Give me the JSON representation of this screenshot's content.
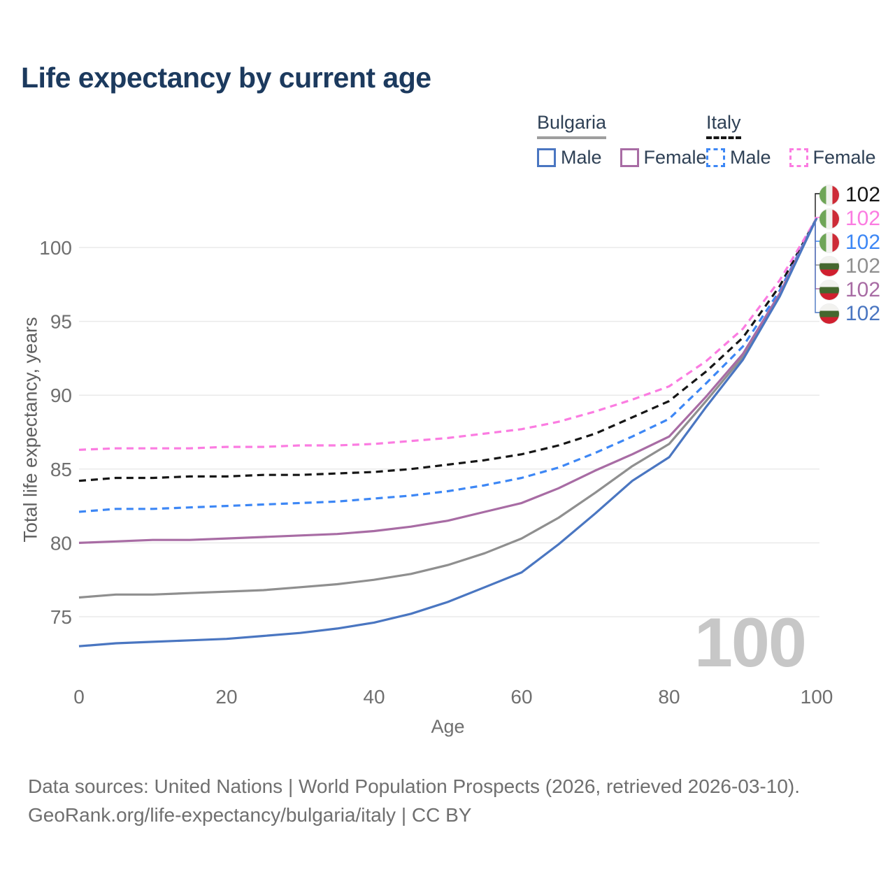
{
  "title": "Life expectancy by current age",
  "legend": {
    "groups": [
      {
        "label": "Bulgaria",
        "underline": "solid",
        "items": [
          {
            "label": "Male",
            "color": "#4a76c1",
            "dashed": false
          },
          {
            "label": "Female",
            "color": "#a86ca4",
            "dashed": false
          }
        ]
      },
      {
        "label": "Italy",
        "underline": "dashed",
        "items": [
          {
            "label": "Male",
            "color": "#3d87f5",
            "dashed": true
          },
          {
            "label": "Female",
            "color": "#fb7ce1",
            "dashed": true
          }
        ]
      }
    ]
  },
  "chart_data": {
    "type": "line",
    "title": "Life expectancy by current age",
    "xlabel": "Age",
    "ylabel": "Total life expectancy, years",
    "x": [
      0,
      5,
      10,
      15,
      20,
      25,
      30,
      35,
      40,
      45,
      50,
      55,
      60,
      65,
      70,
      75,
      80,
      85,
      90,
      95,
      100
    ],
    "x_ticks": [
      0,
      20,
      40,
      60,
      80,
      100
    ],
    "y_ticks": [
      75,
      80,
      85,
      90,
      95,
      100
    ],
    "xlim": [
      0,
      100
    ],
    "ylim": [
      72,
      103.5
    ],
    "grid": true,
    "grid_color": "#eaeaea",
    "axis_text_color": "#6f6f6f",
    "series": [
      {
        "id": "italy-total",
        "name": "Italy total",
        "country": "Italy",
        "flag": "italy",
        "color": "#161616",
        "dashed": true,
        "end_label": "102",
        "values": [
          84.2,
          84.4,
          84.4,
          84.5,
          84.5,
          84.6,
          84.6,
          84.7,
          84.8,
          85.0,
          85.3,
          85.6,
          86.0,
          86.6,
          87.4,
          88.5,
          89.6,
          91.6,
          93.9,
          97.4,
          102
        ]
      },
      {
        "id": "italy-female",
        "name": "Italy female",
        "country": "Italy",
        "flag": "italy",
        "color": "#fb7ce1",
        "dashed": true,
        "end_label": "102",
        "values": [
          86.3,
          86.4,
          86.4,
          86.4,
          86.5,
          86.5,
          86.6,
          86.6,
          86.7,
          86.9,
          87.1,
          87.4,
          87.7,
          88.2,
          88.9,
          89.7,
          90.6,
          92.3,
          94.5,
          97.8,
          102
        ]
      },
      {
        "id": "italy-male",
        "name": "Italy male",
        "country": "Italy",
        "flag": "italy",
        "color": "#3d87f5",
        "dashed": true,
        "end_label": "102",
        "values": [
          82.1,
          82.3,
          82.3,
          82.4,
          82.5,
          82.6,
          82.7,
          82.8,
          83.0,
          83.2,
          83.5,
          83.9,
          84.4,
          85.1,
          86.1,
          87.2,
          88.4,
          90.8,
          93.3,
          97.1,
          102
        ]
      },
      {
        "id": "bulgaria-total",
        "name": "Bulgaria total",
        "country": "Bulgaria",
        "flag": "bulgaria",
        "color": "#8f8f8f",
        "dashed": false,
        "end_label": "102",
        "values": [
          76.3,
          76.5,
          76.5,
          76.6,
          76.7,
          76.8,
          77.0,
          77.2,
          77.5,
          77.9,
          78.5,
          79.3,
          80.3,
          81.7,
          83.4,
          85.2,
          86.7,
          89.6,
          92.6,
          96.8,
          102
        ]
      },
      {
        "id": "bulgaria-female",
        "name": "Bulgaria female",
        "country": "Bulgaria",
        "flag": "bulgaria",
        "color": "#a86ca4",
        "dashed": false,
        "end_label": "102",
        "values": [
          80.0,
          80.1,
          80.2,
          80.2,
          80.3,
          80.4,
          80.5,
          80.6,
          80.8,
          81.1,
          81.5,
          82.1,
          82.7,
          83.7,
          84.9,
          86.0,
          87.2,
          89.9,
          92.8,
          96.9,
          102
        ]
      },
      {
        "id": "bulgaria-male",
        "name": "Bulgaria male",
        "country": "Bulgaria",
        "flag": "bulgaria",
        "color": "#4a76c1",
        "dashed": false,
        "end_label": "102",
        "values": [
          73.0,
          73.2,
          73.3,
          73.4,
          73.5,
          73.7,
          73.9,
          74.2,
          74.6,
          75.2,
          76.0,
          77.0,
          78.0,
          79.9,
          82.0,
          84.2,
          85.8,
          89.2,
          92.4,
          96.7,
          102
        ]
      }
    ],
    "end_label_order": [
      "italy-total",
      "italy-female",
      "italy-male",
      "bulgaria-total",
      "bulgaria-female",
      "bulgaria-male"
    ],
    "legend_position": "top-right"
  },
  "watermark": "100",
  "footer": {
    "line1": "Data sources: United Nations | World Population Prospects (2026, retrieved 2026-03-10).",
    "line2": "GeoRank.org/life-expectancy/bulgaria/italy | CC BY"
  }
}
